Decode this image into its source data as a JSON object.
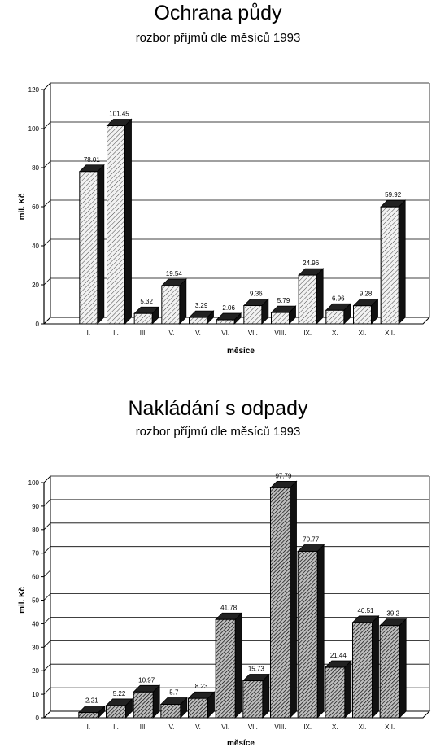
{
  "chart_data": [
    {
      "type": "bar",
      "title": "Ochrana půdy",
      "subtitle": "rozbor příjmů dle měsíců 1993",
      "xlabel": "měsíce",
      "ylabel": "mil. Kč",
      "ylim": [
        0,
        120
      ],
      "yticks": [
        0,
        20,
        40,
        60,
        80,
        100,
        120
      ],
      "grid": true,
      "legend": "none",
      "categories": [
        "I.",
        "II.",
        "III.",
        "IV.",
        "V.",
        "VI.",
        "VII.",
        "VIII.",
        "IX.",
        "X.",
        "XI.",
        "XII."
      ],
      "values": [
        78.01,
        101.45,
        5.32,
        19.54,
        3.29,
        2.06,
        9.36,
        5.79,
        24.96,
        6.96,
        9.28,
        59.92
      ],
      "value_labels": [
        "78.01",
        "101.45",
        "5.32",
        "19.54",
        "3.29",
        "2.06",
        "9.36",
        "5.79",
        "24.96",
        "6.96",
        "9.28",
        "59.92"
      ],
      "bar_style": "light-hatched"
    },
    {
      "type": "bar",
      "title": "Nakládání s odpady",
      "subtitle": "rozbor příjmů dle měsíců 1993",
      "xlabel": "měsíce",
      "ylabel": "mil. Kč",
      "ylim": [
        0,
        100
      ],
      "yticks": [
        0,
        10,
        20,
        30,
        40,
        50,
        60,
        70,
        80,
        90,
        100
      ],
      "grid": true,
      "legend": "none",
      "categories": [
        "I.",
        "II.",
        "III.",
        "IV.",
        "V.",
        "VI.",
        "VII.",
        "VIII.",
        "IX.",
        "X.",
        "XI.",
        "XII."
      ],
      "values": [
        2.21,
        5.22,
        10.97,
        5.7,
        8.23,
        41.78,
        15.73,
        97.79,
        70.77,
        21.44,
        40.51,
        39.2
      ],
      "value_labels": [
        "2.21",
        "5.22",
        "10.97",
        "5.7",
        "8.23",
        "41.78",
        "15.73",
        "97.79",
        "70.77",
        "21.44",
        "40.51",
        "39.2"
      ],
      "bar_style": "dark-hatched"
    }
  ]
}
